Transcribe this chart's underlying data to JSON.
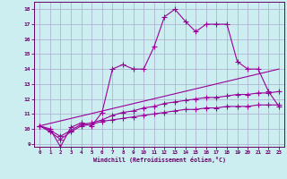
{
  "xlabel": "Windchill (Refroidissement éolien,°C)",
  "background_color": "#cceef0",
  "grid_color": "#aaaacc",
  "line_color": "#990099",
  "spine_color": "#660066",
  "xlim": [
    -0.5,
    23.5
  ],
  "ylim": [
    8.8,
    18.5
  ],
  "yticks": [
    9,
    10,
    11,
    12,
    13,
    14,
    15,
    16,
    17,
    18
  ],
  "xticks": [
    0,
    1,
    2,
    3,
    4,
    5,
    6,
    7,
    8,
    9,
    10,
    11,
    12,
    13,
    14,
    15,
    16,
    17,
    18,
    19,
    20,
    21,
    22,
    23
  ],
  "line1_x": [
    0,
    1,
    2,
    3,
    4,
    5,
    6,
    7,
    8,
    9,
    10,
    11,
    12,
    13,
    14,
    15,
    16,
    17,
    18,
    19,
    20,
    21,
    22,
    23
  ],
  "line1_y": [
    10.2,
    10.0,
    8.8,
    10.1,
    10.4,
    10.2,
    11.1,
    14.0,
    14.3,
    14.0,
    14.0,
    15.5,
    17.5,
    18.0,
    17.2,
    16.5,
    17.0,
    17.0,
    17.0,
    14.5,
    14.0,
    14.0,
    12.5,
    11.5
  ],
  "line2_x": [
    0,
    1,
    2,
    3,
    4,
    5,
    6,
    7,
    8,
    9,
    10,
    11,
    12,
    13,
    14,
    15,
    16,
    17,
    18,
    19,
    20,
    21,
    22,
    23
  ],
  "line2_y": [
    10.2,
    9.8,
    9.3,
    9.8,
    10.2,
    10.3,
    10.5,
    10.6,
    10.7,
    10.8,
    10.9,
    11.0,
    11.1,
    11.2,
    11.3,
    11.3,
    11.4,
    11.4,
    11.5,
    11.5,
    11.5,
    11.6,
    11.6,
    11.6
  ],
  "line3_x": [
    0,
    1,
    2,
    3,
    4,
    5,
    6,
    7,
    8,
    9,
    10,
    11,
    12,
    13,
    14,
    15,
    16,
    17,
    18,
    19,
    20,
    21,
    22,
    23
  ],
  "line3_y": [
    10.2,
    9.9,
    9.5,
    9.9,
    10.3,
    10.4,
    10.6,
    10.9,
    11.1,
    11.2,
    11.4,
    11.5,
    11.7,
    11.8,
    11.9,
    12.0,
    12.1,
    12.1,
    12.2,
    12.3,
    12.3,
    12.4,
    12.4,
    12.5
  ],
  "line4_x": [
    0,
    23
  ],
  "line4_y": [
    10.2,
    14.0
  ]
}
